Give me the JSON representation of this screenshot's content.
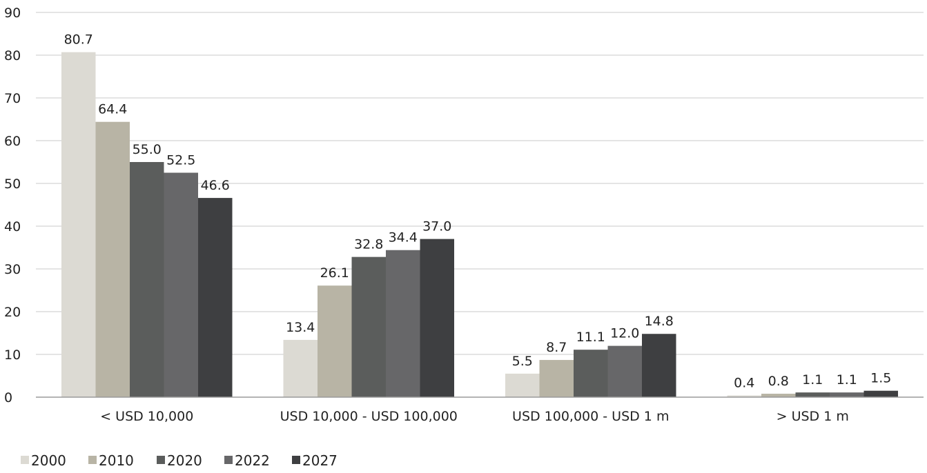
{
  "chart_data": {
    "type": "bar",
    "categories": [
      "< USD 10,000",
      "USD 10,000 - USD 100,000",
      "USD 100,000 - USD 1 m",
      "> USD 1 m"
    ],
    "series": [
      {
        "name": "2000",
        "values": [
          80.7,
          13.4,
          5.5,
          0.4
        ],
        "labels": [
          "80.7",
          "13.4",
          "5.5",
          "0.4"
        ],
        "color": "#dcdad3"
      },
      {
        "name": "2010",
        "values": [
          64.4,
          26.1,
          8.7,
          0.8
        ],
        "labels": [
          "64.4",
          "26.1",
          "8.7",
          "0.8"
        ],
        "color": "#b8b4a5"
      },
      {
        "name": "2020",
        "values": [
          55.0,
          32.8,
          11.1,
          1.1
        ],
        "labels": [
          "55.0",
          "32.8",
          "11.1",
          "1.1"
        ],
        "color": "#5b5d5c"
      },
      {
        "name": "2022",
        "values": [
          52.5,
          34.4,
          12.0,
          1.1
        ],
        "labels": [
          "52.5",
          "34.4",
          "12.0",
          "1.1"
        ],
        "color": "#676769"
      },
      {
        "name": "2027",
        "values": [
          46.6,
          37.0,
          14.8,
          1.5
        ],
        "labels": [
          "46.6",
          "37.0",
          "14.8",
          "1.5"
        ],
        "color": "#3e3f41"
      }
    ],
    "yticks": [
      "0",
      "10",
      "20",
      "30",
      "40",
      "50",
      "60",
      "70",
      "80",
      "90"
    ],
    "ylim": [
      0,
      90
    ],
    "grid": true,
    "legend_position": "bottom-left",
    "title": "",
    "xlabel": "",
    "ylabel": ""
  }
}
